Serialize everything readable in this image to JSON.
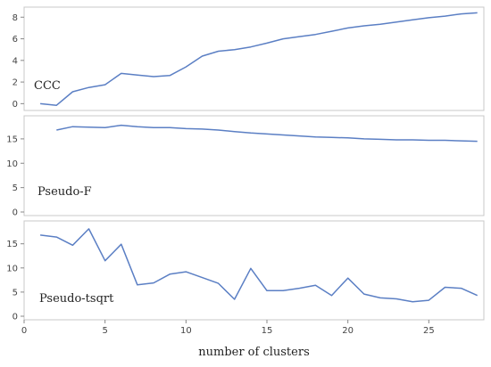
{
  "chart_data": [
    {
      "type": "line",
      "panel_label": "CCC",
      "x": [
        1,
        2,
        3,
        4,
        5,
        6,
        7,
        8,
        9,
        10,
        11,
        12,
        13,
        14,
        15,
        16,
        17,
        18,
        19,
        20,
        21,
        22,
        23,
        24,
        25,
        26,
        27,
        28
      ],
      "values": [
        0,
        -0.15,
        1.1,
        1.5,
        1.75,
        2.8,
        2.65,
        2.5,
        2.6,
        3.4,
        4.4,
        4.85,
        5.0,
        5.25,
        5.6,
        6.0,
        6.2,
        6.4,
        6.7,
        7.0,
        7.2,
        7.35,
        7.55,
        7.75,
        7.95,
        8.1,
        8.3,
        8.4
      ],
      "yticks": [
        "0",
        "2",
        "4",
        "6",
        "8"
      ],
      "ylim": [
        -0.3,
        8.6
      ],
      "color": "#5b7fc4"
    },
    {
      "type": "line",
      "panel_label": "Pseudo-F",
      "x": [
        2,
        3,
        4,
        5,
        6,
        7,
        8,
        9,
        10,
        11,
        12,
        13,
        14,
        15,
        16,
        17,
        18,
        19,
        20,
        21,
        22,
        23,
        24,
        25,
        26,
        27,
        28
      ],
      "values": [
        16.8,
        17.5,
        17.4,
        17.3,
        17.8,
        17.5,
        17.3,
        17.3,
        17.1,
        17.0,
        16.8,
        16.5,
        16.2,
        16.0,
        15.8,
        15.6,
        15.4,
        15.3,
        15.2,
        15.0,
        14.9,
        14.8,
        14.8,
        14.7,
        14.7,
        14.6,
        14.5
      ],
      "yticks": [
        "0",
        "5",
        "10",
        "15"
      ],
      "ylim": [
        0,
        19
      ],
      "color": "#5b7fc4"
    },
    {
      "type": "line",
      "panel_label": "Pseudo-tsqrt",
      "x": [
        1,
        2,
        3,
        4,
        5,
        6,
        7,
        8,
        9,
        10,
        11,
        12,
        13,
        14,
        15,
        16,
        17,
        18,
        19,
        20,
        21,
        22,
        23,
        24,
        25,
        26,
        27,
        28
      ],
      "values": [
        16.8,
        16.4,
        14.7,
        18.1,
        11.5,
        14.9,
        6.5,
        6.9,
        8.7,
        9.2,
        8.0,
        6.8,
        3.5,
        9.9,
        5.3,
        5.3,
        5.8,
        6.4,
        4.3,
        7.9,
        4.6,
        3.8,
        3.6,
        3.0,
        3.3,
        6.0,
        5.8,
        4.3
      ],
      "yticks": [
        "0",
        "5",
        "10",
        "15"
      ],
      "ylim": [
        0,
        19
      ],
      "color": "#5b7fc4"
    }
  ],
  "x_axis": {
    "title": "number of clusters",
    "tick_values": [
      0,
      5,
      10,
      15,
      20,
      25
    ],
    "tick_labels": [
      "0",
      "5",
      "10",
      "15",
      "20",
      "25"
    ],
    "range": [
      0,
      28.4
    ]
  }
}
